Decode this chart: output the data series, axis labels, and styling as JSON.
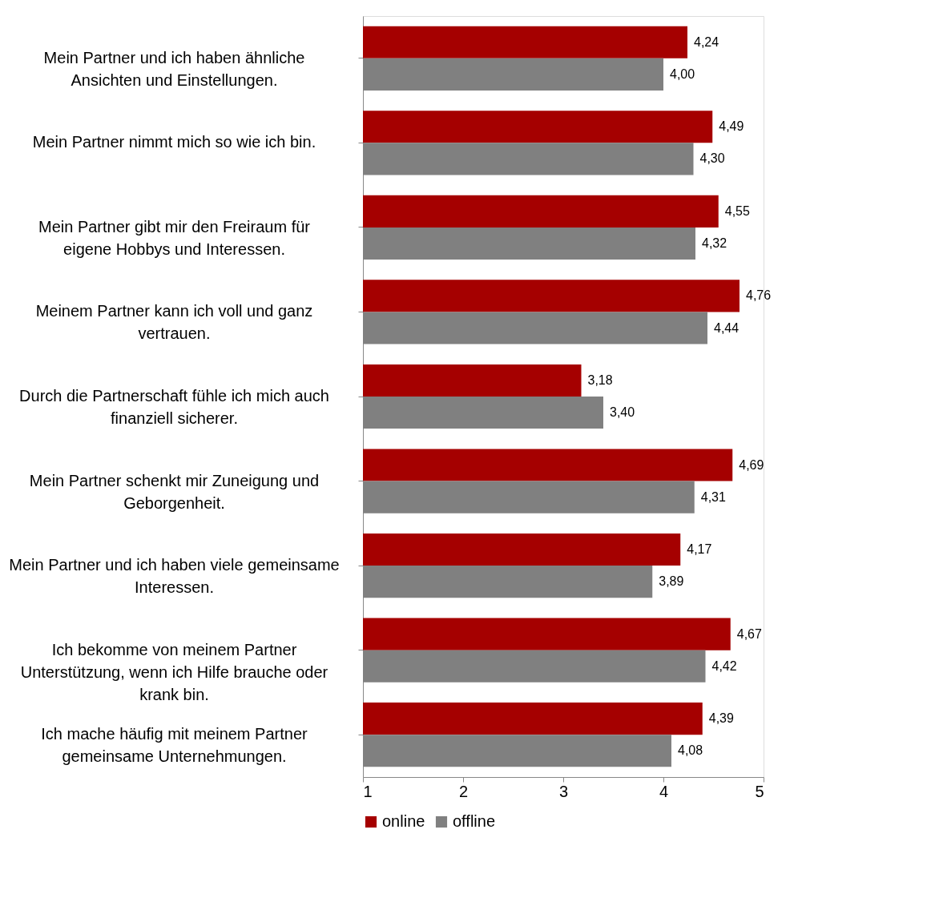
{
  "chart_data": {
    "type": "bar",
    "orientation": "horizontal",
    "categories": [
      "Mein Partner und ich haben ähnliche Ansichten und Einstellungen.",
      "Mein Partner nimmt mich so wie ich bin.",
      "Mein Partner gibt mir den Freiraum für eigene Hobbys und Interessen.",
      "Meinem Partner kann ich voll und ganz vertrauen.",
      "Durch die Partnerschaft fühle ich mich auch finanziell sicherer.",
      "Mein Partner schenkt mir Zuneigung und Geborgenheit.",
      "Mein Partner und ich haben viele gemeinsame Interessen.",
      "Ich bekomme von meinem Partner Unterstützung, wenn ich Hilfe brauche oder krank bin.",
      "Ich mache häufig mit meinem Partner gemeinsame Unternehmungen."
    ],
    "series": [
      {
        "name": "online",
        "color": "#a50000",
        "values": [
          4.24,
          4.49,
          4.55,
          4.76,
          3.18,
          4.69,
          4.17,
          4.67,
          4.39
        ],
        "value_labels": [
          "4,24",
          "4,49",
          "4,55",
          "4,76",
          "3,18",
          "4,69",
          "4,17",
          "4,67",
          "4,39"
        ]
      },
      {
        "name": "offline",
        "color": "#808080",
        "values": [
          4.0,
          4.3,
          4.32,
          4.44,
          3.4,
          4.31,
          3.89,
          4.42,
          4.08
        ],
        "value_labels": [
          "4,00",
          "4,30",
          "4,32",
          "4,44",
          "3,40",
          "4,31",
          "3,89",
          "4,42",
          "4,08"
        ]
      }
    ],
    "xlim": [
      1,
      5
    ],
    "xticks": [
      1,
      2,
      3,
      4,
      5
    ],
    "grid": false,
    "legend": "bottom"
  }
}
